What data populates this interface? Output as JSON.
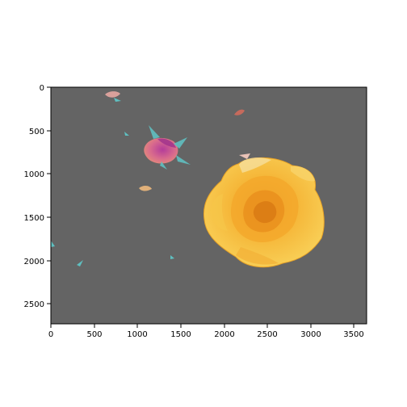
{
  "image": {
    "description_icon": "rose-photo-icon",
    "background_color": "#646464",
    "extent": {
      "width": 3650,
      "height": 2730
    }
  },
  "axes": {
    "x_ticks": [
      "0",
      "500",
      "1000",
      "1500",
      "2000",
      "2500",
      "3000",
      "3500"
    ],
    "y_ticks": [
      "0",
      "500",
      "1000",
      "1500",
      "2000",
      "2500"
    ]
  },
  "colors": {
    "rose_light": "#f9d25a",
    "rose_mid": "#f5b638",
    "rose_dark": "#e98e1d",
    "bud_pink": "#d86a8d",
    "bud_magenta": "#b43c9a",
    "leaf_teal": "#5fbfc0"
  }
}
